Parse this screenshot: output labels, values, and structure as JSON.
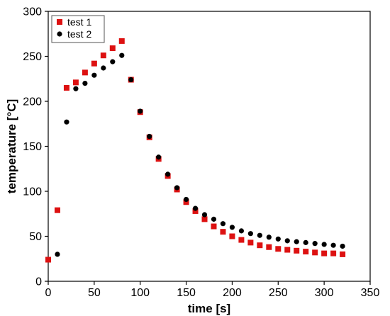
{
  "chart_data": {
    "type": "scatter",
    "title": "",
    "xlabel": "time [s]",
    "ylabel": "temperature [°C]",
    "xlim": [
      0,
      350
    ],
    "ylim": [
      0,
      300
    ],
    "xticks": [
      0,
      50,
      100,
      150,
      200,
      250,
      300,
      350
    ],
    "yticks": [
      0,
      50,
      100,
      150,
      200,
      250,
      300
    ],
    "grid": false,
    "legend": "top-left",
    "series": [
      {
        "name": "test 1",
        "marker": "square",
        "color": "#dd1111",
        "x": [
          0,
          10,
          20,
          30,
          40,
          50,
          60,
          70,
          80,
          90,
          100,
          110,
          120,
          130,
          140,
          150,
          160,
          170,
          180,
          190,
          200,
          210,
          220,
          230,
          240,
          250,
          260,
          270,
          280,
          290,
          300,
          310,
          320
        ],
        "y": [
          24,
          79,
          215,
          221,
          232,
          242,
          251,
          259,
          267,
          224,
          188,
          160,
          136,
          117,
          102,
          88,
          78,
          69,
          61,
          55,
          50,
          46,
          43,
          40,
          38,
          36,
          35,
          34,
          33,
          32,
          31,
          31,
          30
        ]
      },
      {
        "name": "test 2",
        "marker": "circle",
        "color": "#000000",
        "x": [
          10,
          20,
          30,
          40,
          50,
          60,
          70,
          80,
          90,
          100,
          110,
          120,
          130,
          140,
          150,
          160,
          170,
          180,
          190,
          200,
          210,
          220,
          230,
          240,
          250,
          260,
          270,
          280,
          290,
          300,
          310,
          320
        ],
        "y": [
          30,
          177,
          214,
          220,
          229,
          237,
          244,
          251,
          224,
          189,
          161,
          138,
          119,
          104,
          91,
          81,
          74,
          69,
          64,
          60,
          56,
          53,
          51,
          49,
          47,
          45,
          44,
          43,
          42,
          41,
          40,
          39
        ]
      }
    ]
  }
}
